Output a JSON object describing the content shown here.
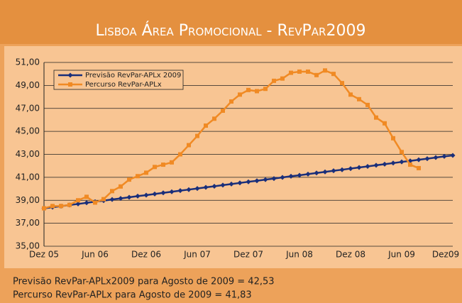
{
  "chart_data": {
    "type": "line",
    "title": "Lisboa Área Promocional - RevPar2009",
    "categories": [
      "Dez 05",
      null,
      null,
      null,
      null,
      null,
      "Jun 06",
      null,
      null,
      null,
      null,
      null,
      "Dez 06",
      null,
      null,
      null,
      null,
      null,
      "Jun 07",
      null,
      null,
      null,
      null,
      null,
      "Dez 07",
      null,
      null,
      null,
      null,
      null,
      "Jun 08",
      null,
      null,
      null,
      null,
      null,
      "Dez 08",
      null,
      null,
      null,
      null,
      null,
      "Jun 09",
      null,
      null,
      null,
      null,
      null,
      "Dez09"
    ],
    "series": [
      {
        "name": "Previsão RevPar-APLx 2009",
        "color": "#1a2f7a",
        "marker": "diamond",
        "values": [
          38.3,
          38.4,
          38.49,
          38.59,
          38.68,
          38.78,
          38.88,
          38.97,
          39.07,
          39.16,
          39.26,
          39.36,
          39.45,
          39.55,
          39.65,
          39.74,
          39.84,
          39.93,
          40.03,
          40.13,
          40.22,
          40.32,
          40.41,
          40.51,
          40.61,
          40.7,
          40.8,
          40.89,
          40.99,
          41.09,
          41.18,
          41.28,
          41.38,
          41.47,
          41.57,
          41.66,
          41.76,
          41.86,
          41.95,
          42.05,
          42.14,
          42.24,
          42.34,
          42.43,
          42.53,
          42.62,
          42.72,
          42.82,
          42.91
        ]
      },
      {
        "name": "Percurso RevPar-APLx",
        "color": "#f08a24",
        "marker": "square",
        "values": [
          38.3,
          38.5,
          38.5,
          38.6,
          39.0,
          39.3,
          38.8,
          39.1,
          39.8,
          40.2,
          40.8,
          41.1,
          41.4,
          41.9,
          42.1,
          42.3,
          43.0,
          43.8,
          44.6,
          45.5,
          46.1,
          46.8,
          47.6,
          48.2,
          48.6,
          48.5,
          48.7,
          49.4,
          49.6,
          50.1,
          50.2,
          50.2,
          49.9,
          50.3,
          50.0,
          49.2,
          48.2,
          47.8,
          47.3,
          46.2,
          45.7,
          44.4,
          43.2,
          42.1,
          41.8,
          null,
          null,
          null,
          null
        ]
      }
    ],
    "ylim": [
      35,
      51
    ],
    "yticks": [
      {
        "value": 35,
        "label": "35,00"
      },
      {
        "value": 37,
        "label": "37,00"
      },
      {
        "value": 39,
        "label": "39,00"
      },
      {
        "value": 41,
        "label": "41,00"
      },
      {
        "value": 43,
        "label": "43,00"
      },
      {
        "value": 45,
        "label": "45,00"
      },
      {
        "value": 47,
        "label": "47,00"
      },
      {
        "value": 49,
        "label": "49,00"
      },
      {
        "value": 51,
        "label": "51,00"
      }
    ],
    "grid": true,
    "legend": "top-left",
    "annotations": [
      "Previsão RevPar-APLx2009 para Agosto de 2009 = 42,53",
      "Percurso RevPar-APLx para Agosto de 2009 = 41,83"
    ]
  }
}
